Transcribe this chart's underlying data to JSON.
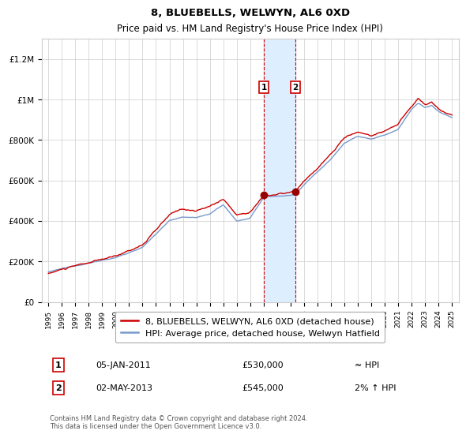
{
  "title": "8, BLUEBELLS, WELWYN, AL6 0XD",
  "subtitle": "Price paid vs. HM Land Registry's House Price Index (HPI)",
  "ylabel_ticks": [
    "£0",
    "£200K",
    "£400K",
    "£600K",
    "£800K",
    "£1M",
    "£1.2M"
  ],
  "ytick_vals": [
    0,
    200000,
    400000,
    600000,
    800000,
    1000000,
    1200000
  ],
  "ylim": [
    0,
    1300000
  ],
  "xlim_start": 1994.5,
  "xlim_end": 2025.5,
  "xtick_years": [
    1995,
    1996,
    1997,
    1998,
    1999,
    2000,
    2001,
    2002,
    2003,
    2004,
    2005,
    2006,
    2007,
    2008,
    2009,
    2010,
    2011,
    2012,
    2013,
    2014,
    2015,
    2016,
    2017,
    2018,
    2019,
    2020,
    2021,
    2022,
    2023,
    2024,
    2025
  ],
  "legend_line1": "8, BLUEBELLS, WELWYN, AL6 0XD (detached house)",
  "legend_line2": "HPI: Average price, detached house, Welwyn Hatfield",
  "transaction1_label": "1",
  "transaction1_date": "05-JAN-2011",
  "transaction1_price": "£530,000",
  "transaction1_vs": "≈ HPI",
  "transaction1_x": 2011.02,
  "transaction1_y": 530000,
  "transaction2_label": "2",
  "transaction2_date": "02-MAY-2013",
  "transaction2_price": "£545,000",
  "transaction2_vs": "2% ↑ HPI",
  "transaction2_x": 2013.35,
  "transaction2_y": 545000,
  "highlight_xstart": 2011.02,
  "highlight_xend": 2013.35,
  "line_color_red": "#cc0000",
  "line_color_blue": "#7799cc",
  "highlight_color": "#ddeeff",
  "footer_text": "Contains HM Land Registry data © Crown copyright and database right 2024.\nThis data is licensed under the Open Government Licence v3.0.",
  "background_color": "#ffffff",
  "grid_color": "#cccccc"
}
